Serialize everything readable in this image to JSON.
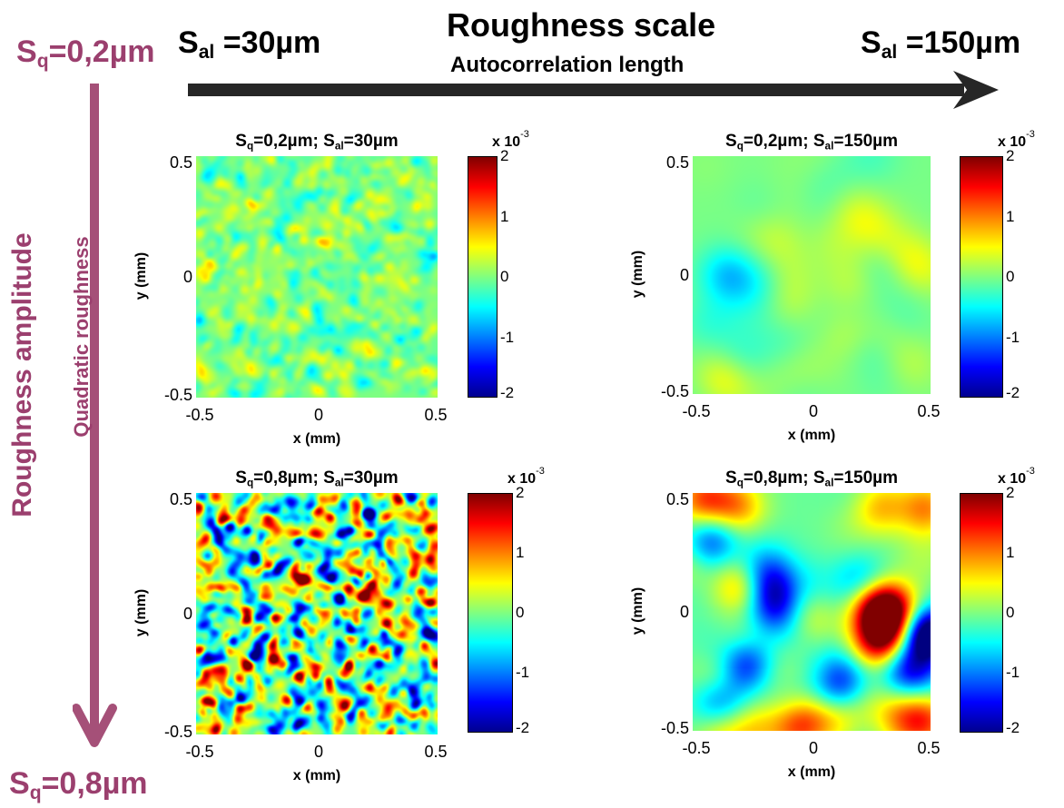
{
  "header": {
    "sq_top": {
      "main": "S",
      "sub": "q",
      "rest": "=0,2µm"
    },
    "sal_left": {
      "main": "S",
      "sub": "al",
      "rest": " =30µm"
    },
    "title": "Roughness scale",
    "subtitle": "Autocorrelation length",
    "sal_right": {
      "main": "S",
      "sub": "al",
      "rest": " =150µm"
    }
  },
  "side": {
    "title": "Roughness amplitude",
    "subtitle": "Quadratic roughness",
    "sq_bottom": {
      "main": "S",
      "sub": "q",
      "rest": "=0,8µm"
    }
  },
  "colors": {
    "label_purple": "#9B3F6E",
    "arrow_dark": "#262626",
    "arrow_purple": "#A55078"
  },
  "chart_data": [
    {
      "type": "heatmap",
      "title": {
        "a": "S",
        "a_sub": "q",
        "a_rest": "=0,2µm;  ",
        "b": "S",
        "b_sub": "al",
        "b_rest": "=30µm"
      },
      "xlabel": "x (mm)",
      "ylabel": "y (mm)",
      "xlim": [
        -0.5,
        0.5
      ],
      "ylim": [
        -0.5,
        0.5
      ],
      "xticks": [
        "-0.5",
        "0",
        "0.5"
      ],
      "yticks": [
        "0.5",
        "0",
        "-0.5"
      ],
      "sq_um": 0.2,
      "sal_um": 30,
      "colorbar": {
        "ticks": [
          "2",
          "1",
          "0",
          "-1",
          "-2"
        ],
        "exp_label": "x 10",
        "exp": "-3",
        "clim": [
          -0.002,
          0.002
        ],
        "colormap": "jet"
      }
    },
    {
      "type": "heatmap",
      "title": {
        "a": "S",
        "a_sub": "q",
        "a_rest": "=0,2µm;  ",
        "b": "S",
        "b_sub": "al",
        "b_rest": "=150µm"
      },
      "xlabel": "x (mm)",
      "ylabel": "y (mm)",
      "xlim": [
        -0.5,
        0.5
      ],
      "ylim": [
        -0.5,
        0.5
      ],
      "xticks": [
        "-0.5",
        "0",
        "0.5"
      ],
      "yticks": [
        "0.5",
        "0",
        "-0.5"
      ],
      "sq_um": 0.2,
      "sal_um": 150,
      "colorbar": {
        "ticks": [
          "2",
          "1",
          "0",
          "-1",
          "-2"
        ],
        "exp_label": "x 10",
        "exp": "-3",
        "clim": [
          -0.002,
          0.002
        ],
        "colormap": "jet"
      }
    },
    {
      "type": "heatmap",
      "title": {
        "a": "S",
        "a_sub": "q",
        "a_rest": "=0,8µm;  ",
        "b": "S",
        "b_sub": "al",
        "b_rest": "=30µm"
      },
      "xlabel": "x (mm)",
      "ylabel": "y (mm)",
      "xlim": [
        -0.5,
        0.5
      ],
      "ylim": [
        -0.5,
        0.5
      ],
      "xticks": [
        "-0.5",
        "0",
        "0.5"
      ],
      "yticks": [
        "0.5",
        "0",
        "-0.5"
      ],
      "sq_um": 0.8,
      "sal_um": 30,
      "colorbar": {
        "ticks": [
          "2",
          "1",
          "0",
          "-1",
          "-2"
        ],
        "exp_label": "x 10",
        "exp": "-3",
        "clim": [
          -0.002,
          0.002
        ],
        "colormap": "jet"
      }
    },
    {
      "type": "heatmap",
      "title": {
        "a": "S",
        "a_sub": "q",
        "a_rest": "=0,8µm;  ",
        "b": "S",
        "b_sub": "al",
        "b_rest": "=150µm"
      },
      "xlabel": "x (mm)",
      "ylabel": "y (mm)",
      "xlim": [
        -0.5,
        0.5
      ],
      "ylim": [
        -0.5,
        0.5
      ],
      "xticks": [
        "-0.5",
        "0",
        "0.5"
      ],
      "yticks": [
        "0.5",
        "0",
        "-0.5"
      ],
      "sq_um": 0.8,
      "sal_um": 150,
      "colorbar": {
        "ticks": [
          "2",
          "1",
          "0",
          "-1",
          "-2"
        ],
        "exp_label": "x 10",
        "exp": "-3",
        "clim": [
          -0.002,
          0.002
        ],
        "colormap": "jet"
      }
    }
  ]
}
